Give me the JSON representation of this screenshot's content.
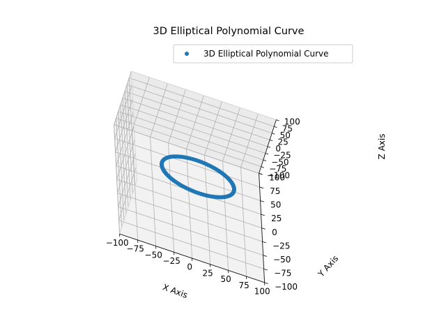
{
  "chart_data": {
    "type": "scatter",
    "projection": "3d",
    "title": "3D Elliptical Polynomial Curve",
    "xlabel": "X Axis",
    "ylabel": "Y Axis",
    "zlabel": "Z Axis",
    "xlim": [
      -100,
      100
    ],
    "ylim": [
      -100,
      100
    ],
    "zlim": [
      -100,
      100
    ],
    "x_ticks": [
      -100,
      -75,
      -50,
      -25,
      0,
      25,
      50,
      75,
      100
    ],
    "y_ticks": [
      -100,
      -75,
      -50,
      -25,
      0,
      25,
      50,
      75,
      100
    ],
    "z_ticks": [
      -100,
      -75,
      -50,
      -25,
      0,
      25,
      50,
      75,
      100
    ],
    "x_tick_labels": [
      "−100",
      "−75",
      "−50",
      "−25",
      "0",
      "25",
      "50",
      "75",
      "100"
    ],
    "y_tick_labels": [
      "−100",
      "−75",
      "−50",
      "−25",
      "0",
      "25",
      "50",
      "75",
      "100"
    ],
    "z_tick_labels": [
      "−100",
      "−75",
      "−50",
      "−25",
      "0",
      "25",
      "50",
      "75",
      "100"
    ],
    "grid": true,
    "legend_position": "top-right",
    "series": [
      {
        "name": "3D Elliptical Polynomial Curve",
        "color": "#1f77b4",
        "marker": "circle",
        "curve": {
          "shape": "ellipse",
          "x_semi_axis": 50,
          "y_semi_axis": 30,
          "z_values": [
            0
          ],
          "num_points": 100
        }
      }
    ]
  }
}
